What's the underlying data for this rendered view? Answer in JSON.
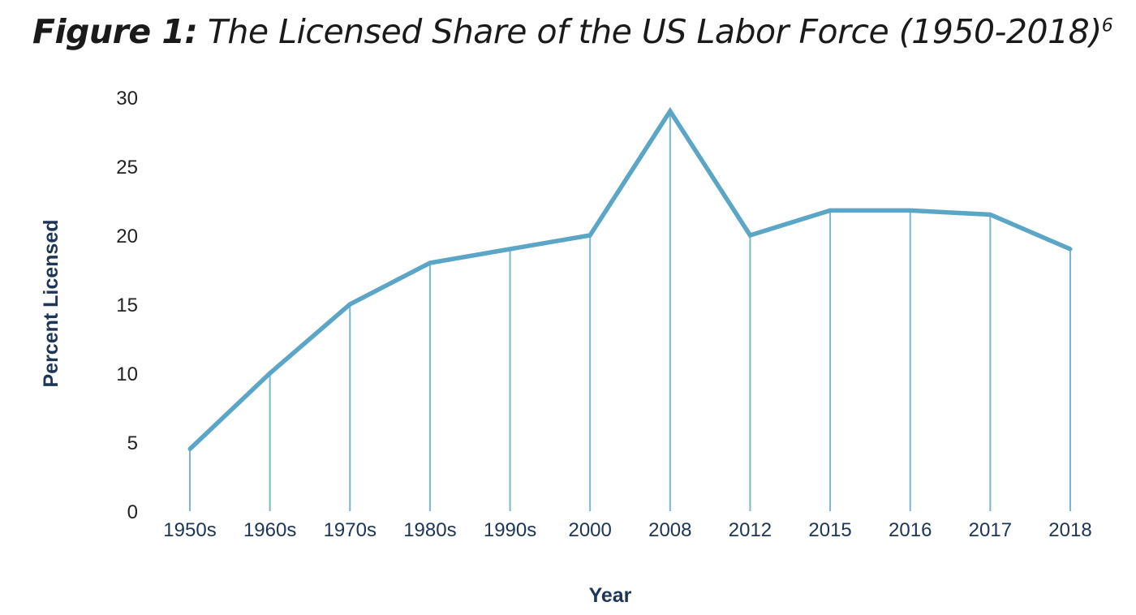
{
  "title": {
    "prefix": "Figure 1:",
    "text": "The Licensed Share of the US Labor Force (1950-2018)",
    "note": "6"
  },
  "chart_data": {
    "type": "line",
    "title": "Figure 1: The Licensed Share of the US Labor Force (1950-2018)",
    "xlabel": "Year",
    "ylabel": "Percent Licensed",
    "ylim": [
      0,
      30
    ],
    "yticks": [
      0,
      5,
      10,
      15,
      20,
      25,
      30
    ],
    "categories": [
      "1950s",
      "1960s",
      "1970s",
      "1980s",
      "1990s",
      "2000",
      "2008",
      "2012",
      "2015",
      "2016",
      "2017",
      "2018"
    ],
    "series": [
      {
        "values": [
          4.5,
          10,
          15,
          18,
          19,
          20,
          29,
          20,
          21.8,
          21.8,
          21.5,
          19
        ],
        "color": "#5ba6c6"
      }
    ],
    "grid": false,
    "drop_lines": true,
    "drop_line_color": "#7ab6cf",
    "legend": "none"
  }
}
